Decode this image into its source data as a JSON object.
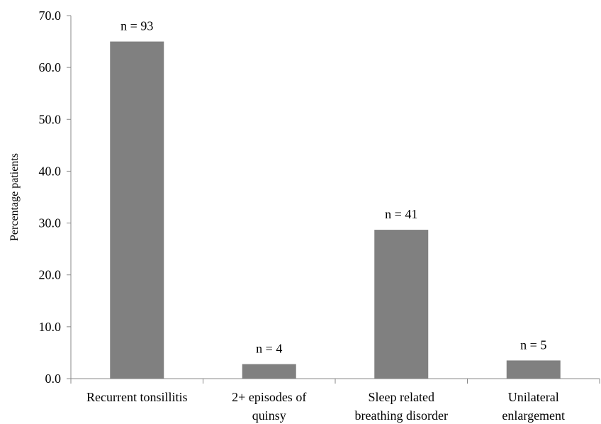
{
  "chart_data": {
    "type": "bar",
    "title": "",
    "xlabel": "",
    "ylabel": "Percentage patients",
    "ylim": [
      0,
      70
    ],
    "yticks": [
      0,
      10,
      20,
      30,
      40,
      50,
      60,
      70
    ],
    "ytick_labels": [
      "0.0",
      "10.0",
      "20.0",
      "30.0",
      "40.0",
      "50.0",
      "60.0",
      "70.0"
    ],
    "categories": [
      [
        "Recurrent tonsillitis"
      ],
      [
        "2+ episodes of",
        "quinsy"
      ],
      [
        "Sleep related",
        "breathing disorder"
      ],
      [
        "Unilateral",
        "enlargement"
      ]
    ],
    "values": [
      65.0,
      2.8,
      28.7,
      3.5
    ],
    "data_labels": [
      "n = 93",
      "n = 4",
      "n = 41",
      "n = 5"
    ],
    "bar_color": "#808080",
    "grid": false,
    "legend": "none"
  }
}
